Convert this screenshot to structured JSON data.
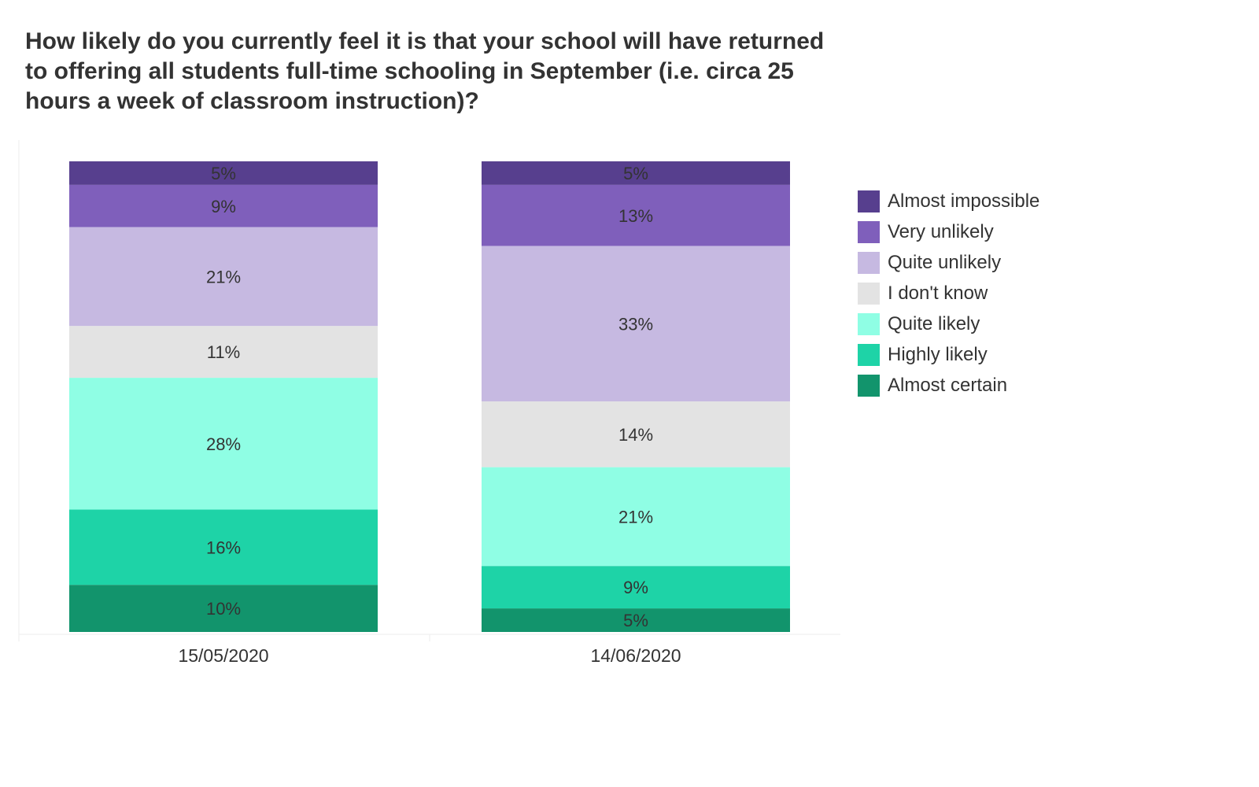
{
  "chart_data": {
    "type": "bar",
    "stacked": true,
    "title": "How likely do you currently feel it is that your school will have returned to offering all students full-time schooling in September (i.e. circa 25 hours a week of classroom instruction)?",
    "categories": [
      "15/05/2020",
      "14/06/2020"
    ],
    "series": [
      {
        "name": "Almost impossible",
        "color": "#573f8e",
        "values": [
          5,
          5
        ]
      },
      {
        "name": "Very unlikely",
        "color": "#7f5fbb",
        "values": [
          9,
          13
        ]
      },
      {
        "name": "Quite unlikely",
        "color": "#c6b9e1",
        "values": [
          21,
          33
        ]
      },
      {
        "name": "I don't know",
        "color": "#e3e3e3",
        "values": [
          11,
          14
        ]
      },
      {
        "name": "Quite likely",
        "color": "#8ffee4",
        "values": [
          28,
          21
        ]
      },
      {
        "name": "Highly likely",
        "color": "#1ed3a7",
        "values": [
          16,
          9
        ]
      },
      {
        "name": "Almost certain",
        "color": "#12946c",
        "values": [
          10,
          5
        ]
      }
    ],
    "value_suffix": "%",
    "xlabel": "",
    "ylabel": "",
    "legend_position": "right"
  }
}
